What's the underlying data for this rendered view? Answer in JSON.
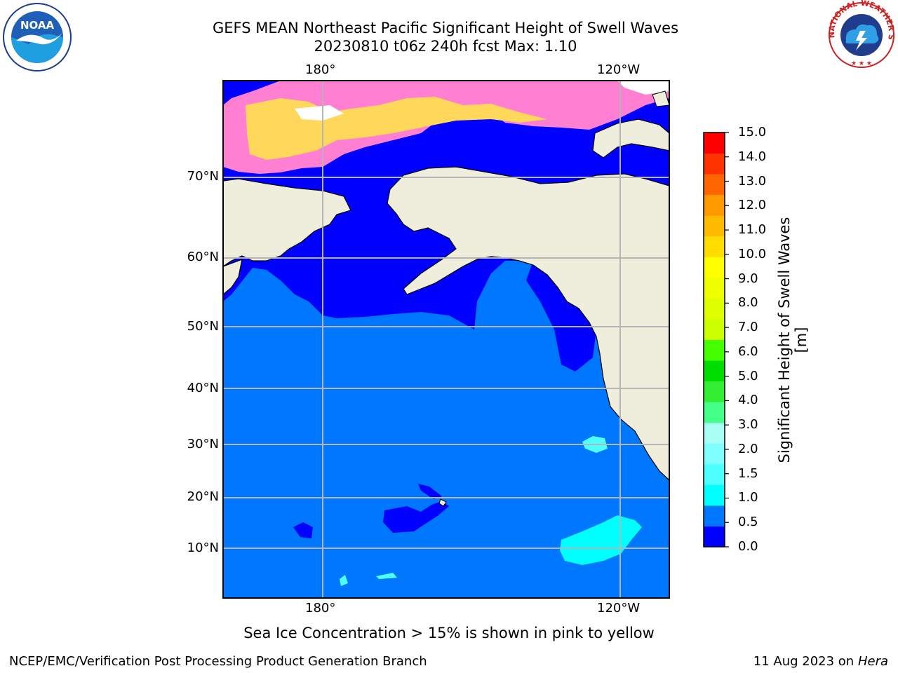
{
  "title_line1": "GEFS MEAN Northeast Pacific Significant Height of Swell Waves",
  "title_line2": "20230810 t06z 240h fcst   Max: 1.10",
  "logos": {
    "noaa": {
      "icon": "noaa-logo",
      "text": "NOAA"
    },
    "nws": {
      "icon": "national-weather-service-logo",
      "text": "NATIONAL WEATHER SERVICE"
    }
  },
  "map": {
    "lon_labels": [
      "180°",
      "120°W"
    ],
    "lat_labels": [
      "70°N",
      "60°N",
      "50°N",
      "40°N",
      "30°N",
      "20°N",
      "10°N"
    ],
    "colors": {
      "land": "#efeedc",
      "ocean_05_1": "#0077ff",
      "ocean_0_05": "#0000ff",
      "swell_1_15": "#00ffff",
      "swell_15_2": "#7fffff",
      "ice": "#ff7fd2",
      "ice_high": "#ffd75a",
      "grid": "#b5b5b5"
    }
  },
  "colorbar": {
    "ticks": [
      "15.0",
      "14.0",
      "13.0",
      "12.0",
      "11.0",
      "10.0",
      "9.0",
      "8.0",
      "7.0",
      "6.0",
      "5.0",
      "4.0",
      "3.0",
      "2.0",
      "1.5",
      "1.0",
      "0.5",
      "0.0"
    ],
    "colors_bottom_to_top": [
      "#0000ff",
      "#0077ff",
      "#00ffff",
      "#4dffff",
      "#7fffff",
      "#aafff5",
      "#44ff88",
      "#33ee33",
      "#00dd00",
      "#44ff00",
      "#ccff00",
      "#ddff00",
      "#eeff00",
      "#ffff00",
      "#ffdd00",
      "#ffbb00",
      "#ff9900",
      "#ff6600",
      "#ff3300",
      "#ff0000"
    ],
    "label": "Significant Height of Swell Waves [m]"
  },
  "note": "Sea Ice Concentration > 15% is shown in pink to yellow",
  "footer_left": "NCEP/EMC/Verification Post Processing Product Generation Branch",
  "footer_date": "11 Aug 2023 on",
  "footer_host": "Hera"
}
